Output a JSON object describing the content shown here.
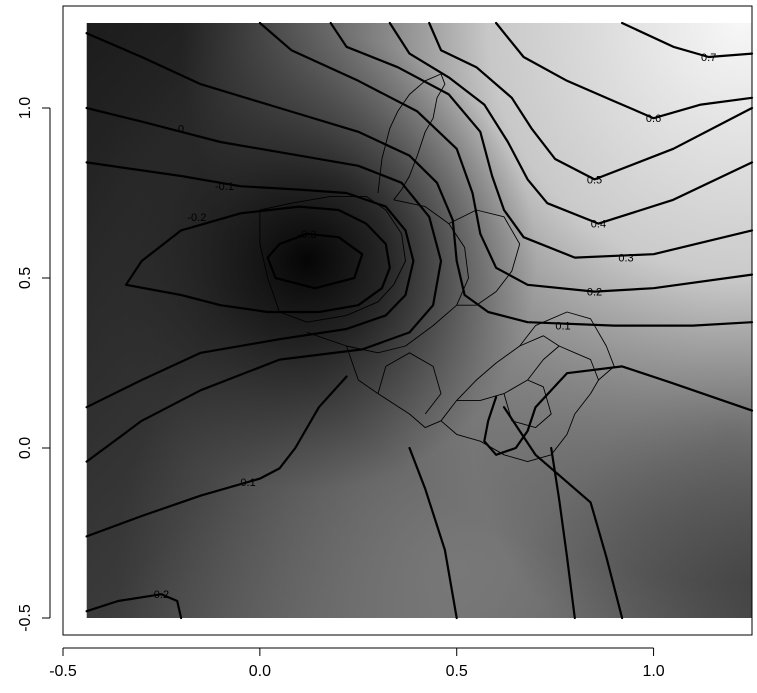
{
  "chart_data": {
    "type": "heatmap",
    "subtype": "contour-over-shaded-surface-with-region-borders",
    "title": "",
    "xlabel": "",
    "ylabel": "",
    "xlim": [
      -0.5,
      1.25
    ],
    "ylim": [
      -0.55,
      1.3
    ],
    "x_ticks": [
      {
        "value": -0.5,
        "label": "-0.5"
      },
      {
        "value": 0.0,
        "label": "0.0"
      },
      {
        "value": 0.5,
        "label": "0.5"
      },
      {
        "value": 1.0,
        "label": "1.0"
      }
    ],
    "y_ticks": [
      {
        "value": -0.5,
        "label": "-0.5"
      },
      {
        "value": 0.0,
        "label": "0.0"
      },
      {
        "value": 0.5,
        "label": "0.5"
      },
      {
        "value": 1.0,
        "label": "1.0"
      }
    ],
    "surface_extent": {
      "x": [
        -0.44,
        1.25
      ],
      "y": [
        -0.5,
        1.25
      ]
    },
    "surface_minimum": {
      "x": 0.12,
      "y": 0.55,
      "value": -0.35
    },
    "colormap": {
      "low": "#0d0d0d",
      "high": "#f2f2f2"
    },
    "grid": false,
    "legend": "none",
    "contours": [
      {
        "level": -0.3,
        "label": "-0.3",
        "label_at": [
          0.12,
          0.63
        ],
        "path": [
          [
            0.05,
            0.6
          ],
          [
            0.12,
            0.63
          ],
          [
            0.2,
            0.62
          ],
          [
            0.26,
            0.57
          ],
          [
            0.24,
            0.5
          ],
          [
            0.14,
            0.47
          ],
          [
            0.04,
            0.5
          ],
          [
            0.02,
            0.56
          ],
          [
            0.05,
            0.6
          ]
        ]
      },
      {
        "level": -0.2,
        "label": "-0.2",
        "label_at": [
          -0.16,
          0.68
        ],
        "path": [
          [
            -0.34,
            0.48
          ],
          [
            -0.3,
            0.55
          ],
          [
            -0.2,
            0.64
          ],
          [
            -0.05,
            0.69
          ],
          [
            0.1,
            0.71
          ],
          [
            0.2,
            0.7
          ],
          [
            0.27,
            0.66
          ],
          [
            0.32,
            0.6
          ],
          [
            0.33,
            0.53
          ],
          [
            0.31,
            0.47
          ],
          [
            0.25,
            0.42
          ],
          [
            0.15,
            0.4
          ],
          [
            0.02,
            0.4
          ],
          [
            -0.1,
            0.42
          ],
          [
            -0.2,
            0.45
          ],
          [
            -0.34,
            0.48
          ]
        ]
      },
      {
        "level": -0.1,
        "label": "-0.1",
        "label_at": [
          -0.09,
          0.77
        ],
        "path": [
          [
            -0.44,
            0.84
          ],
          [
            -0.2,
            0.8
          ],
          [
            -0.05,
            0.77
          ],
          [
            0.1,
            0.76
          ],
          [
            0.22,
            0.75
          ],
          [
            0.32,
            0.71
          ],
          [
            0.37,
            0.64
          ],
          [
            0.39,
            0.55
          ],
          [
            0.37,
            0.45
          ],
          [
            0.32,
            0.39
          ],
          [
            0.22,
            0.35
          ],
          [
            0.05,
            0.32
          ],
          [
            -0.15,
            0.28
          ],
          [
            -0.3,
            0.2
          ],
          [
            -0.44,
            0.12
          ]
        ]
      },
      {
        "level": 0.0,
        "label": "0",
        "label_at": [
          -0.2,
          0.94
        ],
        "path": [
          [
            -0.44,
            1.0
          ],
          [
            -0.3,
            0.96
          ],
          [
            -0.1,
            0.9
          ],
          [
            0.1,
            0.86
          ],
          [
            0.25,
            0.83
          ],
          [
            0.36,
            0.78
          ],
          [
            0.43,
            0.68
          ],
          [
            0.46,
            0.55
          ],
          [
            0.44,
            0.42
          ],
          [
            0.38,
            0.34
          ],
          [
            0.26,
            0.29
          ],
          [
            0.05,
            0.26
          ],
          [
            -0.15,
            0.17
          ],
          [
            -0.3,
            0.08
          ],
          [
            -0.44,
            -0.04
          ]
        ]
      },
      {
        "level": 0.1,
        "label": "0.1",
        "label_at": [
          0.77,
          0.36
        ],
        "path": [
          [
            -0.44,
            1.22
          ],
          [
            -0.3,
            1.15
          ],
          [
            -0.15,
            1.07
          ],
          [
            0.05,
            1.0
          ],
          [
            0.25,
            0.93
          ],
          [
            0.38,
            0.86
          ],
          [
            0.45,
            0.78
          ],
          [
            0.49,
            0.67
          ],
          [
            0.5,
            0.55
          ],
          [
            0.52,
            0.45
          ],
          [
            0.58,
            0.4
          ],
          [
            0.68,
            0.37
          ],
          [
            0.9,
            0.36
          ],
          [
            1.1,
            0.36
          ],
          [
            1.25,
            0.37
          ]
        ]
      },
      {
        "level": 0.1,
        "label": "0.1",
        "label_at": [
          -0.03,
          -0.1
        ],
        "path": [
          [
            -0.44,
            -0.26
          ],
          [
            -0.3,
            -0.2
          ],
          [
            -0.15,
            -0.14
          ],
          [
            0.0,
            -0.09
          ],
          [
            0.05,
            -0.06
          ],
          [
            0.09,
            0.0
          ],
          [
            0.15,
            0.12
          ],
          [
            0.22,
            0.21
          ]
        ]
      },
      {
        "level": 0.1,
        "label": "0.1",
        "label_at": null,
        "path": [
          [
            0.6,
            0.15
          ],
          [
            0.58,
            0.08
          ],
          [
            0.57,
            0.02
          ],
          [
            0.6,
            -0.02
          ],
          [
            0.65,
            0.0
          ],
          [
            0.68,
            0.05
          ],
          [
            0.7,
            0.12
          ],
          [
            0.78,
            0.22
          ],
          [
            0.92,
            0.24
          ],
          [
            1.05,
            0.19
          ],
          [
            1.25,
            0.11
          ]
        ]
      },
      {
        "level": 0.2,
        "label": "0.2",
        "label_at": [
          0.85,
          0.46
        ],
        "path": [
          [
            0.0,
            1.25
          ],
          [
            0.08,
            1.17
          ],
          [
            0.25,
            1.08
          ],
          [
            0.4,
            0.99
          ],
          [
            0.5,
            0.88
          ],
          [
            0.54,
            0.75
          ],
          [
            0.56,
            0.63
          ],
          [
            0.6,
            0.53
          ],
          [
            0.68,
            0.48
          ],
          [
            0.85,
            0.46
          ],
          [
            1.0,
            0.47
          ],
          [
            1.25,
            0.51
          ]
        ]
      },
      {
        "level": 0.2,
        "label": "0.2",
        "label_at": [
          -0.25,
          -0.43
        ],
        "path": [
          [
            -0.44,
            -0.48
          ],
          [
            -0.36,
            -0.45
          ],
          [
            -0.25,
            -0.43
          ],
          [
            -0.21,
            -0.45
          ],
          [
            -0.2,
            -0.5
          ]
        ]
      },
      {
        "level": 0.3,
        "label": "0.3",
        "label_at": [
          0.93,
          0.56
        ],
        "path": [
          [
            0.18,
            1.25
          ],
          [
            0.22,
            1.18
          ],
          [
            0.35,
            1.12
          ],
          [
            0.48,
            1.04
          ],
          [
            0.56,
            0.93
          ],
          [
            0.59,
            0.8
          ],
          [
            0.62,
            0.7
          ],
          [
            0.67,
            0.62
          ],
          [
            0.8,
            0.56
          ],
          [
            1.0,
            0.57
          ],
          [
            1.25,
            0.64
          ]
        ]
      },
      {
        "level": 0.4,
        "label": "0.4",
        "label_at": [
          0.86,
          0.66
        ],
        "path": [
          [
            0.33,
            1.25
          ],
          [
            0.38,
            1.16
          ],
          [
            0.48,
            1.09
          ],
          [
            0.57,
            1.01
          ],
          [
            0.63,
            0.9
          ],
          [
            0.68,
            0.79
          ],
          [
            0.73,
            0.72
          ],
          [
            0.86,
            0.66
          ],
          [
            1.05,
            0.73
          ],
          [
            1.25,
            0.84
          ]
        ]
      },
      {
        "level": 0.5,
        "label": "0.5",
        "label_at": [
          0.85,
          0.79
        ],
        "path": [
          [
            0.43,
            1.25
          ],
          [
            0.46,
            1.17
          ],
          [
            0.55,
            1.12
          ],
          [
            0.64,
            1.03
          ],
          [
            0.69,
            0.94
          ],
          [
            0.75,
            0.85
          ],
          [
            0.85,
            0.79
          ],
          [
            1.05,
            0.88
          ],
          [
            1.25,
            1.0
          ]
        ]
      },
      {
        "level": 0.6,
        "label": "0.6",
        "label_at": [
          1.0,
          0.97
        ],
        "path": [
          [
            0.6,
            1.25
          ],
          [
            0.67,
            1.15
          ],
          [
            0.78,
            1.08
          ],
          [
            0.9,
            1.02
          ],
          [
            1.0,
            0.97
          ],
          [
            1.12,
            1.01
          ],
          [
            1.25,
            1.03
          ]
        ]
      },
      {
        "level": 0.7,
        "label": "0.7",
        "label_at": [
          1.14,
          1.15
        ],
        "path": [
          [
            0.92,
            1.25
          ],
          [
            1.05,
            1.18
          ],
          [
            1.14,
            1.15
          ],
          [
            1.25,
            1.16
          ]
        ]
      },
      {
        "level": 0.0,
        "label": "",
        "label_at": null,
        "path": [
          [
            0.38,
            0.0
          ],
          [
            0.42,
            -0.12
          ],
          [
            0.47,
            -0.3
          ],
          [
            0.5,
            -0.5
          ]
        ]
      },
      {
        "level": 0.1,
        "label": "",
        "label_at": null,
        "path": [
          [
            0.74,
            0.0
          ],
          [
            0.76,
            -0.15
          ],
          [
            0.78,
            -0.32
          ],
          [
            0.8,
            -0.5
          ]
        ]
      },
      {
        "level": 0.2,
        "label": "",
        "label_at": null,
        "path": [
          [
            0.62,
            0.12
          ],
          [
            0.7,
            -0.02
          ],
          [
            0.76,
            -0.08
          ],
          [
            0.84,
            -0.16
          ],
          [
            0.88,
            -0.32
          ],
          [
            0.92,
            -0.5
          ]
        ]
      }
    ],
    "region_borders": [
      {
        "name": "north-strip",
        "path": [
          [
            0.3,
            0.75
          ],
          [
            0.31,
            0.85
          ],
          [
            0.33,
            0.94
          ],
          [
            0.35,
            0.99
          ],
          [
            0.38,
            1.04
          ],
          [
            0.42,
            1.08
          ],
          [
            0.46,
            1.1
          ],
          [
            0.47,
            1.07
          ],
          [
            0.45,
            1.03
          ],
          [
            0.44,
            0.97
          ],
          [
            0.42,
            0.93
          ],
          [
            0.4,
            0.86
          ],
          [
            0.38,
            0.8
          ],
          [
            0.36,
            0.76
          ],
          [
            0.34,
            0.73
          ]
        ]
      },
      {
        "name": "west-inner",
        "path": [
          [
            0.0,
            0.7
          ],
          [
            0.08,
            0.72
          ],
          [
            0.18,
            0.74
          ],
          [
            0.27,
            0.74
          ],
          [
            0.32,
            0.7
          ],
          [
            0.36,
            0.63
          ],
          [
            0.37,
            0.55
          ],
          [
            0.34,
            0.48
          ],
          [
            0.3,
            0.43
          ],
          [
            0.22,
            0.39
          ],
          [
            0.12,
            0.37
          ],
          [
            0.05,
            0.4
          ],
          [
            0.02,
            0.5
          ],
          [
            0.0,
            0.6
          ],
          [
            0.0,
            0.7
          ]
        ]
      },
      {
        "name": "centre",
        "path": [
          [
            0.34,
            0.73
          ],
          [
            0.42,
            0.71
          ],
          [
            0.48,
            0.66
          ],
          [
            0.52,
            0.59
          ],
          [
            0.53,
            0.5
          ],
          [
            0.5,
            0.42
          ],
          [
            0.44,
            0.36
          ],
          [
            0.37,
            0.3
          ],
          [
            0.3,
            0.28
          ],
          [
            0.22,
            0.3
          ],
          [
            0.12,
            0.34
          ]
        ]
      },
      {
        "name": "east-central",
        "path": [
          [
            0.48,
            0.66
          ],
          [
            0.55,
            0.7
          ],
          [
            0.62,
            0.68
          ],
          [
            0.66,
            0.6
          ],
          [
            0.64,
            0.52
          ],
          [
            0.6,
            0.46
          ],
          [
            0.55,
            0.42
          ],
          [
            0.5,
            0.42
          ]
        ]
      },
      {
        "name": "south-central",
        "path": [
          [
            0.22,
            0.3
          ],
          [
            0.25,
            0.2
          ],
          [
            0.3,
            0.16
          ],
          [
            0.38,
            0.1
          ],
          [
            0.42,
            0.06
          ],
          [
            0.46,
            0.08
          ],
          [
            0.5,
            0.14
          ],
          [
            0.55,
            0.2
          ],
          [
            0.6,
            0.25
          ],
          [
            0.66,
            0.3
          ],
          [
            0.72,
            0.33
          ],
          [
            0.76,
            0.3
          ]
        ]
      },
      {
        "name": "south-east",
        "path": [
          [
            0.46,
            0.08
          ],
          [
            0.5,
            0.04
          ],
          [
            0.56,
            0.02
          ],
          [
            0.62,
            -0.02
          ],
          [
            0.68,
            -0.04
          ],
          [
            0.74,
            -0.02
          ],
          [
            0.78,
            0.04
          ],
          [
            0.8,
            0.1
          ],
          [
            0.84,
            0.16
          ],
          [
            0.86,
            0.2
          ],
          [
            0.84,
            0.26
          ],
          [
            0.8,
            0.28
          ],
          [
            0.76,
            0.3
          ],
          [
            0.72,
            0.26
          ],
          [
            0.68,
            0.2
          ],
          [
            0.62,
            0.16
          ],
          [
            0.56,
            0.14
          ],
          [
            0.5,
            0.14
          ]
        ]
      },
      {
        "name": "far-east",
        "path": [
          [
            0.66,
            0.3
          ],
          [
            0.7,
            0.36
          ],
          [
            0.78,
            0.4
          ],
          [
            0.84,
            0.38
          ],
          [
            0.88,
            0.3
          ],
          [
            0.9,
            0.24
          ],
          [
            0.86,
            0.2
          ]
        ]
      },
      {
        "name": "inner-sub-1",
        "path": [
          [
            0.62,
            0.16
          ],
          [
            0.64,
            0.08
          ],
          [
            0.7,
            0.06
          ],
          [
            0.74,
            0.1
          ],
          [
            0.72,
            0.18
          ],
          [
            0.68,
            0.2
          ]
        ]
      },
      {
        "name": "inner-sub-2",
        "path": [
          [
            0.3,
            0.16
          ],
          [
            0.32,
            0.24
          ],
          [
            0.38,
            0.28
          ],
          [
            0.44,
            0.24
          ],
          [
            0.46,
            0.16
          ],
          [
            0.42,
            0.1
          ]
        ]
      }
    ]
  }
}
